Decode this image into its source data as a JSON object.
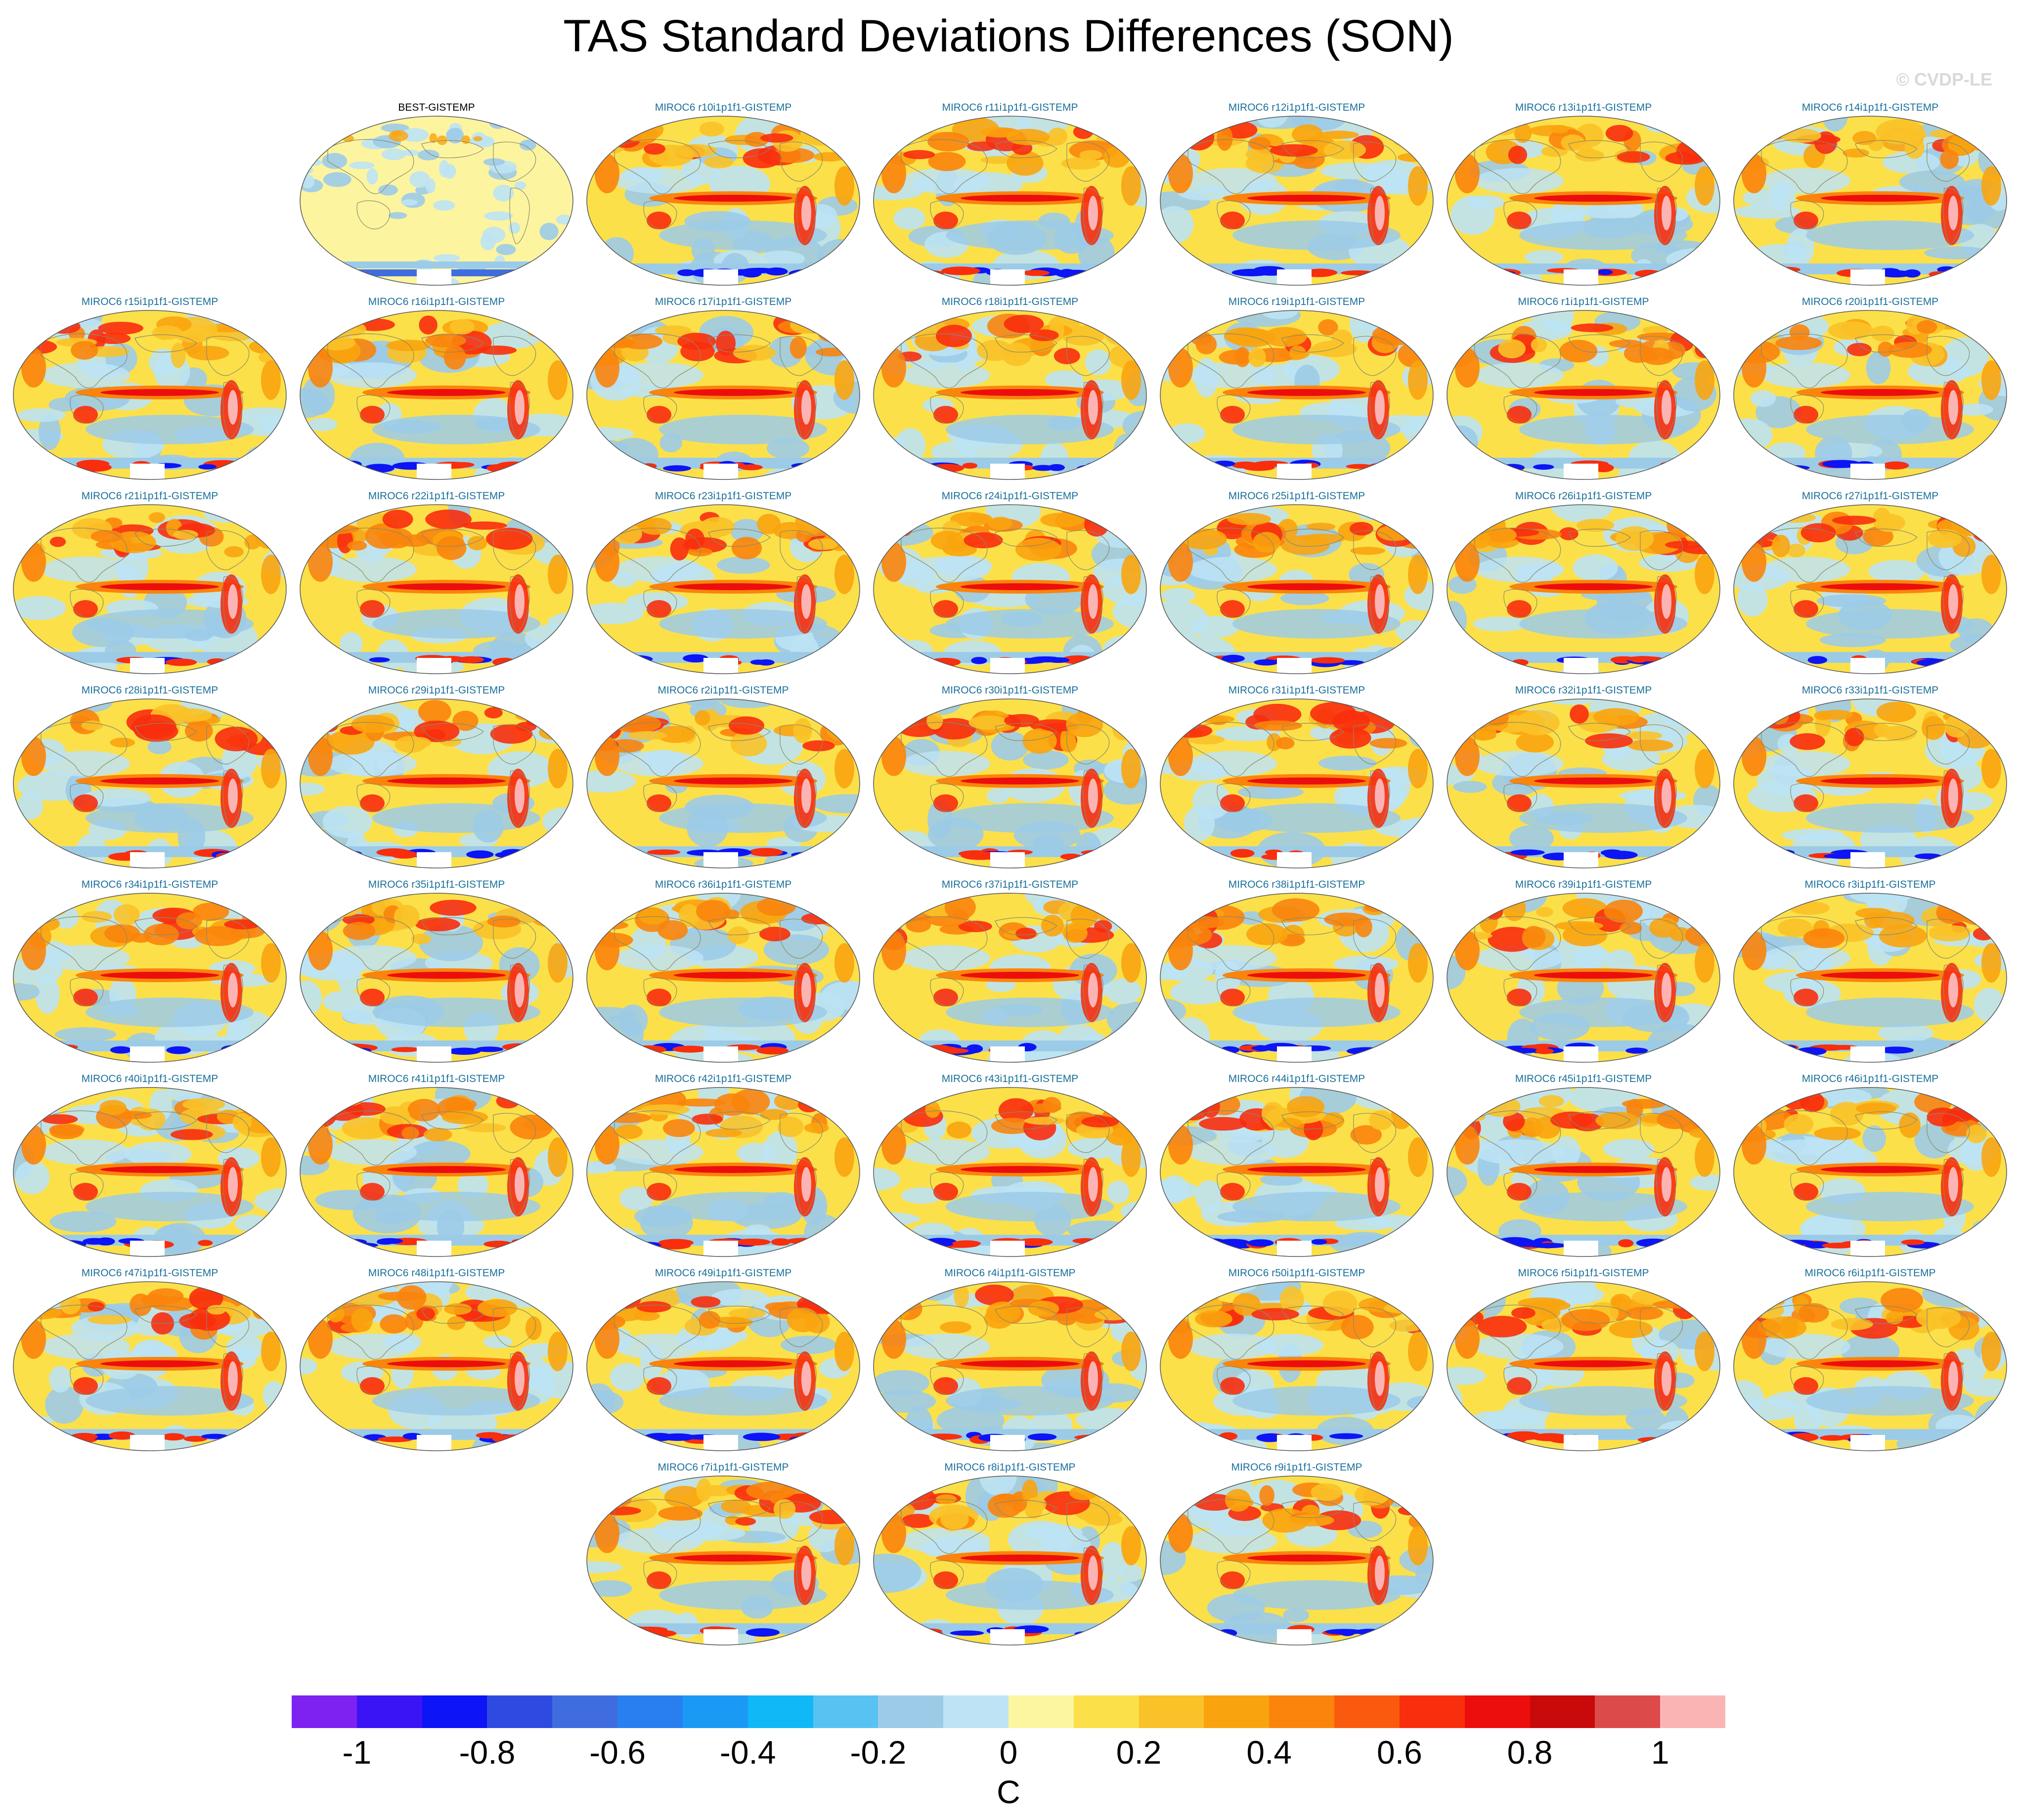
{
  "title": "TAS Standard Deviations Differences (SON)",
  "watermark": "© CVDP-LE",
  "panels": [
    {
      "label": "BEST-GISTEMP",
      "kind": "obs"
    },
    {
      "label": "MIROC6 r10i1p1f1-GISTEMP",
      "kind": "model"
    },
    {
      "label": "MIROC6 r11i1p1f1-GISTEMP",
      "kind": "model"
    },
    {
      "label": "MIROC6 r12i1p1f1-GISTEMP",
      "kind": "model"
    },
    {
      "label": "MIROC6 r13i1p1f1-GISTEMP",
      "kind": "model"
    },
    {
      "label": "MIROC6 r14i1p1f1-GISTEMP",
      "kind": "model"
    },
    {
      "label": "MIROC6 r15i1p1f1-GISTEMP",
      "kind": "model"
    },
    {
      "label": "MIROC6 r16i1p1f1-GISTEMP",
      "kind": "model"
    },
    {
      "label": "MIROC6 r17i1p1f1-GISTEMP",
      "kind": "model"
    },
    {
      "label": "MIROC6 r18i1p1f1-GISTEMP",
      "kind": "model"
    },
    {
      "label": "MIROC6 r19i1p1f1-GISTEMP",
      "kind": "model"
    },
    {
      "label": "MIROC6 r1i1p1f1-GISTEMP",
      "kind": "model"
    },
    {
      "label": "MIROC6 r20i1p1f1-GISTEMP",
      "kind": "model"
    },
    {
      "label": "MIROC6 r21i1p1f1-GISTEMP",
      "kind": "model"
    },
    {
      "label": "MIROC6 r22i1p1f1-GISTEMP",
      "kind": "model"
    },
    {
      "label": "MIROC6 r23i1p1f1-GISTEMP",
      "kind": "model"
    },
    {
      "label": "MIROC6 r24i1p1f1-GISTEMP",
      "kind": "model"
    },
    {
      "label": "MIROC6 r25i1p1f1-GISTEMP",
      "kind": "model"
    },
    {
      "label": "MIROC6 r26i1p1f1-GISTEMP",
      "kind": "model"
    },
    {
      "label": "MIROC6 r27i1p1f1-GISTEMP",
      "kind": "model"
    },
    {
      "label": "MIROC6 r28i1p1f1-GISTEMP",
      "kind": "model"
    },
    {
      "label": "MIROC6 r29i1p1f1-GISTEMP",
      "kind": "model"
    },
    {
      "label": "MIROC6 r2i1p1f1-GISTEMP",
      "kind": "model"
    },
    {
      "label": "MIROC6 r30i1p1f1-GISTEMP",
      "kind": "model"
    },
    {
      "label": "MIROC6 r31i1p1f1-GISTEMP",
      "kind": "model"
    },
    {
      "label": "MIROC6 r32i1p1f1-GISTEMP",
      "kind": "model"
    },
    {
      "label": "MIROC6 r33i1p1f1-GISTEMP",
      "kind": "model"
    },
    {
      "label": "MIROC6 r34i1p1f1-GISTEMP",
      "kind": "model"
    },
    {
      "label": "MIROC6 r35i1p1f1-GISTEMP",
      "kind": "model"
    },
    {
      "label": "MIROC6 r36i1p1f1-GISTEMP",
      "kind": "model"
    },
    {
      "label": "MIROC6 r37i1p1f1-GISTEMP",
      "kind": "model"
    },
    {
      "label": "MIROC6 r38i1p1f1-GISTEMP",
      "kind": "model"
    },
    {
      "label": "MIROC6 r39i1p1f1-GISTEMP",
      "kind": "model"
    },
    {
      "label": "MIROC6 r3i1p1f1-GISTEMP",
      "kind": "model"
    },
    {
      "label": "MIROC6 r40i1p1f1-GISTEMP",
      "kind": "model"
    },
    {
      "label": "MIROC6 r41i1p1f1-GISTEMP",
      "kind": "model"
    },
    {
      "label": "MIROC6 r42i1p1f1-GISTEMP",
      "kind": "model"
    },
    {
      "label": "MIROC6 r43i1p1f1-GISTEMP",
      "kind": "model"
    },
    {
      "label": "MIROC6 r44i1p1f1-GISTEMP",
      "kind": "model"
    },
    {
      "label": "MIROC6 r45i1p1f1-GISTEMP",
      "kind": "model"
    },
    {
      "label": "MIROC6 r46i1p1f1-GISTEMP",
      "kind": "model"
    },
    {
      "label": "MIROC6 r47i1p1f1-GISTEMP",
      "kind": "model"
    },
    {
      "label": "MIROC6 r48i1p1f1-GISTEMP",
      "kind": "model"
    },
    {
      "label": "MIROC6 r49i1p1f1-GISTEMP",
      "kind": "model"
    },
    {
      "label": "MIROC6 r4i1p1f1-GISTEMP",
      "kind": "model"
    },
    {
      "label": "MIROC6 r50i1p1f1-GISTEMP",
      "kind": "model"
    },
    {
      "label": "MIROC6 r5i1p1f1-GISTEMP",
      "kind": "model"
    },
    {
      "label": "MIROC6 r6i1p1f1-GISTEMP",
      "kind": "model"
    },
    {
      "label": "MIROC6 r7i1p1f1-GISTEMP",
      "kind": "model"
    },
    {
      "label": "MIROC6 r8i1p1f1-GISTEMP",
      "kind": "model"
    },
    {
      "label": "MIROC6 r9i1p1f1-GISTEMP",
      "kind": "model"
    }
  ],
  "colorbar": {
    "colors": [
      "#7d22f0",
      "#3a14f5",
      "#0d14f5",
      "#2f4ae0",
      "#3f6de0",
      "#2a7ff0",
      "#1a9af5",
      "#10b8f5",
      "#58c3f2",
      "#9ccbe8",
      "#bde3f4",
      "#fdf6a0",
      "#fbe04a",
      "#f9c228",
      "#f9a40e",
      "#fa840c",
      "#fa5a0e",
      "#f82e0d",
      "#ec0e0c",
      "#c80a0a",
      "#dc4a4a",
      "#fbb4b4"
    ],
    "tick_labels": [
      "-1",
      "-0.8",
      "-0.6",
      "-0.4",
      "-0.2",
      "0",
      "0.2",
      "0.4",
      "0.6",
      "0.8",
      "1"
    ],
    "units": "C"
  }
}
